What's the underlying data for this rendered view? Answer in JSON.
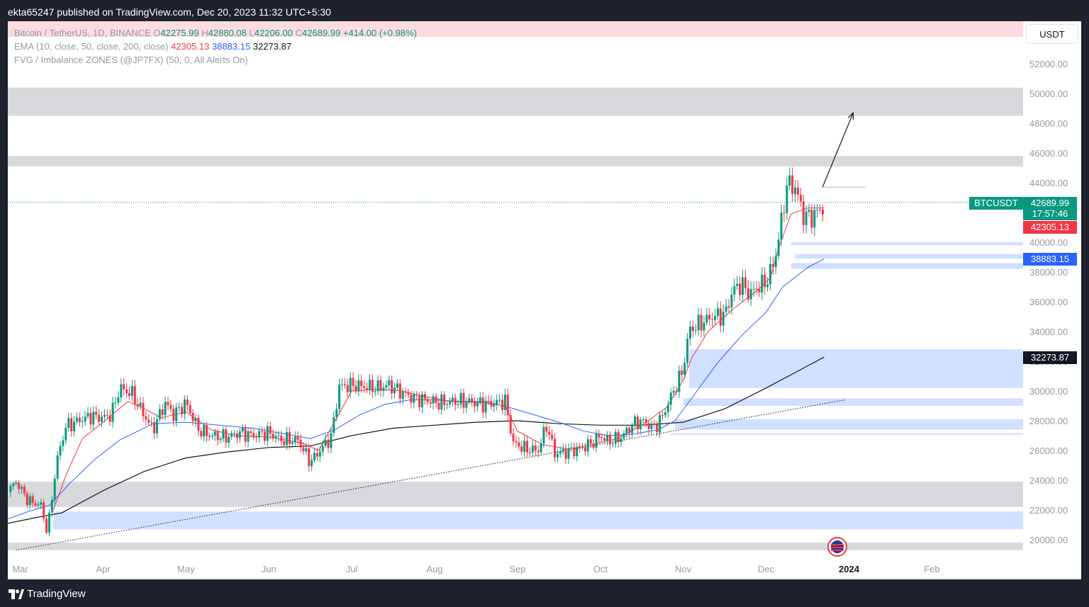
{
  "header": {
    "publisher_text": "ekta65247 published on TradingView.com, Dec 20, 2023 11:32 UTC+5:30"
  },
  "footer": {
    "brand": "TradingView"
  },
  "legend": {
    "symbol": "Bitcoin / TetherUS, 1D, BINANCE",
    "o_label": "O",
    "o_value": "42275.99",
    "h_label": "H",
    "h_value": "42880.08",
    "l_label": "L",
    "l_value": "42206.00",
    "c_label": "C",
    "c_value": "42689.99",
    "change": "+414.00 (+0.98%)",
    "ema_label": "EMA (10, close, 50, close, 200, close)",
    "ema10": "42305.13",
    "ema50": "38883.15",
    "ema200": "32273.87",
    "fvg_label": "FVG / Imbalance ZONES (@JP7FX) (50, 0, All Alerts On)"
  },
  "axis": {
    "currency": "USDT"
  },
  "price_badges": {
    "symbol": "BTCUSDT",
    "last": "42689.99",
    "countdown": "17:57:46",
    "ema10": "42305.13",
    "ema50": "38883.15",
    "ema200": "32273.87"
  },
  "colors": {
    "up": "#089981",
    "down": "#f23645",
    "ema10": "#f23645",
    "ema50": "#2962ff",
    "ema200": "#131722",
    "fvg": "#d1e0ff",
    "zone": "#d8d9dc",
    "ohlc_bar": "#fddcdf"
  },
  "chart_data": {
    "type": "candlestick",
    "title": "Bitcoin / TetherUS, 1D, BINANCE",
    "ylim": [
      19000,
      53000
    ],
    "y_ticks": [
      20000,
      22000,
      24000,
      26000,
      28000,
      30000,
      32000,
      34000,
      36000,
      38000,
      40000,
      42000,
      44000,
      46000,
      48000,
      50000,
      52000
    ],
    "y_tick_labels": [
      "20000.00",
      "22000.00",
      "24000.00",
      "26000.00",
      "28000.00",
      "30000.00",
      "32000.00",
      "34000.00",
      "36000.00",
      "38000.00",
      "40000.00",
      "42000.00",
      "44000.00",
      "46000.00",
      "48000.00",
      "50000.00",
      "52000.00"
    ],
    "x_labels": [
      "Mar",
      "Apr",
      "May",
      "Jun",
      "Jul",
      "Aug",
      "Sep",
      "Oct",
      "Nov",
      "Dec",
      "2024",
      "Feb"
    ],
    "x_label_months": [
      2,
      3,
      4,
      5,
      6,
      7,
      8,
      9,
      10,
      11,
      12,
      13
    ],
    "x_start_month": 1.85,
    "x_end_month": 14.1,
    "close_path": [
      [
        1.85,
        23200
      ],
      [
        1.95,
        23900
      ],
      [
        2.1,
        22600
      ],
      [
        2.25,
        22300
      ],
      [
        2.33,
        20400
      ],
      [
        2.37,
        22400
      ],
      [
        2.45,
        25500
      ],
      [
        2.55,
        27600
      ],
      [
        2.7,
        28000
      ],
      [
        2.85,
        28300
      ],
      [
        3.0,
        28200
      ],
      [
        3.1,
        28400
      ],
      [
        3.2,
        30200
      ],
      [
        3.35,
        29800
      ],
      [
        3.45,
        28800
      ],
      [
        3.6,
        27400
      ],
      [
        3.75,
        29200
      ],
      [
        3.85,
        28400
      ],
      [
        4.0,
        29200
      ],
      [
        4.15,
        27400
      ],
      [
        4.3,
        27000
      ],
      [
        4.5,
        26900
      ],
      [
        4.65,
        27200
      ],
      [
        4.8,
        27000
      ],
      [
        5.0,
        27200
      ],
      [
        5.15,
        26700
      ],
      [
        5.35,
        26700
      ],
      [
        5.5,
        25200
      ],
      [
        5.6,
        25900
      ],
      [
        5.75,
        26900
      ],
      [
        5.85,
        30300
      ],
      [
        6.0,
        30400
      ],
      [
        6.15,
        30300
      ],
      [
        6.3,
        30200
      ],
      [
        6.45,
        30400
      ],
      [
        6.6,
        29900
      ],
      [
        6.75,
        29500
      ],
      [
        6.9,
        29400
      ],
      [
        7.05,
        29200
      ],
      [
        7.2,
        29300
      ],
      [
        7.4,
        29300
      ],
      [
        7.6,
        29100
      ],
      [
        7.75,
        29200
      ],
      [
        7.85,
        29300
      ],
      [
        7.95,
        26500
      ],
      [
        8.1,
        26100
      ],
      [
        8.25,
        26000
      ],
      [
        8.35,
        27700
      ],
      [
        8.45,
        25800
      ],
      [
        8.6,
        25900
      ],
      [
        8.75,
        26100
      ],
      [
        8.9,
        26500
      ],
      [
        9.0,
        27000
      ],
      [
        9.1,
        26600
      ],
      [
        9.25,
        26900
      ],
      [
        9.4,
        27800
      ],
      [
        9.5,
        28000
      ],
      [
        9.65,
        27500
      ],
      [
        9.75,
        28300
      ],
      [
        9.85,
        29600
      ],
      [
        9.95,
        30800
      ],
      [
        10.0,
        31500
      ],
      [
        10.07,
        34100
      ],
      [
        10.2,
        34500
      ],
      [
        10.35,
        35000
      ],
      [
        10.5,
        35100
      ],
      [
        10.6,
        36800
      ],
      [
        10.7,
        37200
      ],
      [
        10.8,
        36500
      ],
      [
        10.9,
        37000
      ],
      [
        11.0,
        37300
      ],
      [
        11.1,
        38700
      ],
      [
        11.2,
        41900
      ],
      [
        11.25,
        43900
      ],
      [
        11.35,
        43700
      ],
      [
        11.45,
        41800
      ],
      [
        11.55,
        41700
      ],
      [
        11.65,
        42200
      ],
      [
        11.68,
        42275.99
      ],
      [
        11.7,
        42689.99
      ]
    ],
    "ema10": [
      [
        2.4,
        22000
      ],
      [
        2.55,
        24300
      ],
      [
        2.75,
        26800
      ],
      [
        3.0,
        27900
      ],
      [
        3.3,
        29300
      ],
      [
        3.5,
        28800
      ],
      [
        3.7,
        28200
      ],
      [
        4.0,
        28600
      ],
      [
        4.3,
        27400
      ],
      [
        4.6,
        27000
      ],
      [
        5.0,
        26900
      ],
      [
        5.4,
        26500
      ],
      [
        5.6,
        26000
      ],
      [
        5.8,
        28000
      ],
      [
        6.0,
        30000
      ],
      [
        6.3,
        30100
      ],
      [
        6.6,
        30000
      ],
      [
        6.9,
        29600
      ],
      [
        7.2,
        29300
      ],
      [
        7.6,
        29200
      ],
      [
        7.85,
        29000
      ],
      [
        8.0,
        27300
      ],
      [
        8.3,
        26400
      ],
      [
        8.6,
        26100
      ],
      [
        8.9,
        26400
      ],
      [
        9.2,
        26800
      ],
      [
        9.5,
        27700
      ],
      [
        9.8,
        28900
      ],
      [
        10.0,
        30700
      ],
      [
        10.1,
        32200
      ],
      [
        10.3,
        34000
      ],
      [
        10.6,
        35500
      ],
      [
        10.9,
        36800
      ],
      [
        11.05,
        37600
      ],
      [
        11.15,
        39600
      ],
      [
        11.3,
        41900
      ],
      [
        11.5,
        42300
      ],
      [
        11.7,
        42305.13
      ]
    ],
    "ema50": [
      [
        1.85,
        21400
      ],
      [
        2.1,
        21900
      ],
      [
        2.35,
        22300
      ],
      [
        2.6,
        23800
      ],
      [
        2.9,
        25400
      ],
      [
        3.2,
        26700
      ],
      [
        3.6,
        27800
      ],
      [
        4.0,
        27900
      ],
      [
        4.4,
        27700
      ],
      [
        4.8,
        27500
      ],
      [
        5.2,
        27100
      ],
      [
        5.5,
        26800
      ],
      [
        5.8,
        27400
      ],
      [
        6.1,
        28400
      ],
      [
        6.4,
        29100
      ],
      [
        6.7,
        29400
      ],
      [
        7.0,
        29400
      ],
      [
        7.3,
        29300
      ],
      [
        7.6,
        29300
      ],
      [
        7.9,
        28900
      ],
      [
        8.2,
        28400
      ],
      [
        8.5,
        27900
      ],
      [
        8.8,
        27300
      ],
      [
        9.1,
        27000
      ],
      [
        9.4,
        27100
      ],
      [
        9.7,
        27400
      ],
      [
        9.9,
        28000
      ],
      [
        10.1,
        29500
      ],
      [
        10.4,
        31800
      ],
      [
        10.7,
        33700
      ],
      [
        11.0,
        35300
      ],
      [
        11.2,
        37000
      ],
      [
        11.5,
        38300
      ],
      [
        11.7,
        38883.15
      ]
    ],
    "ema200": [
      [
        1.85,
        21100
      ],
      [
        2.2,
        21500
      ],
      [
        2.5,
        21800
      ],
      [
        3.0,
        23300
      ],
      [
        3.5,
        24600
      ],
      [
        4.0,
        25500
      ],
      [
        4.5,
        25900
      ],
      [
        5.0,
        26200
      ],
      [
        5.5,
        26300
      ],
      [
        6.0,
        27000
      ],
      [
        6.5,
        27500
      ],
      [
        7.0,
        27700
      ],
      [
        7.5,
        27900
      ],
      [
        8.0,
        28000
      ],
      [
        8.5,
        27800
      ],
      [
        9.0,
        27700
      ],
      [
        9.5,
        27700
      ],
      [
        10.0,
        27900
      ],
      [
        10.5,
        28800
      ],
      [
        11.0,
        30200
      ],
      [
        11.7,
        32273.87
      ]
    ],
    "gray_zones": [
      [
        48500,
        50400
      ],
      [
        45100,
        45800
      ],
      [
        22200,
        23900
      ],
      [
        19300,
        19800
      ]
    ],
    "fvg_zones": [
      {
        "x0": 11.3,
        "y0": 39800,
        "y1": 40000
      },
      {
        "x0": 11.35,
        "y0": 38900,
        "y1": 39200
      },
      {
        "x0": 11.3,
        "y0": 38200,
        "y1": 38600
      },
      {
        "x0": 10.07,
        "y0": 30200,
        "y1": 32800
      },
      {
        "x0": 10.0,
        "y0": 29000,
        "y1": 29500
      },
      {
        "x0": 9.9,
        "y0": 27400,
        "y1": 28100
      },
      {
        "x0": 9.85,
        "y0": 27050,
        "y1": 27150
      },
      {
        "x0": 2.4,
        "y0": 20700,
        "y1": 21900
      }
    ],
    "trendline": {
      "x0": 1.95,
      "y0": 19300,
      "x1": 11.95,
      "y1": 29400
    },
    "resistance_line": {
      "x0": 11.68,
      "x1": 12.2,
      "y": 43700
    },
    "arrow": {
      "x0": 11.68,
      "y0": 43700,
      "x1": 12.05,
      "y1": 48700
    },
    "last_price": 42689.99
  }
}
